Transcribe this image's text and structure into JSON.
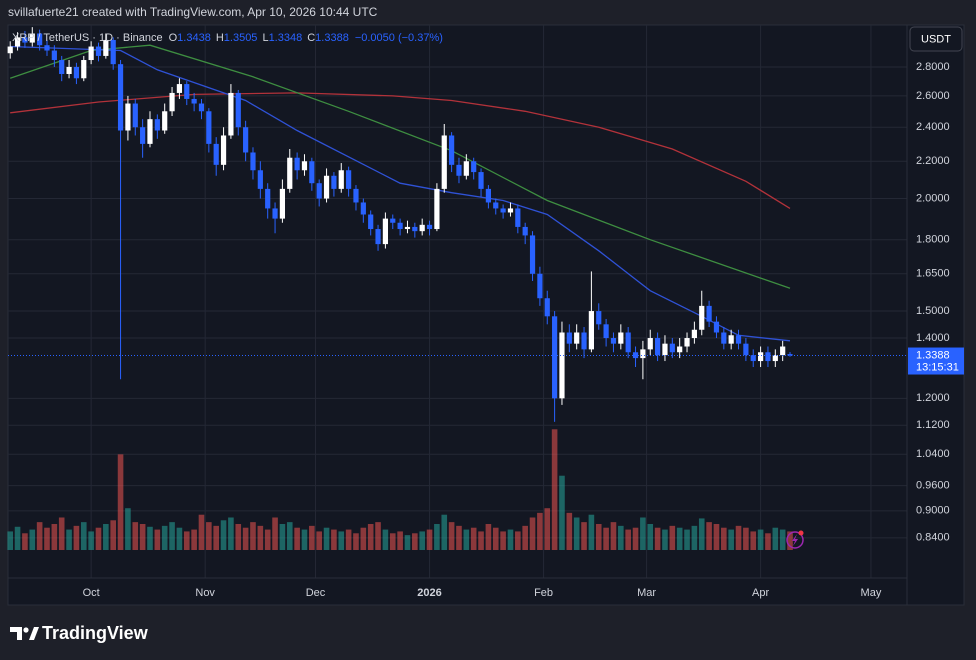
{
  "header": {
    "credit": "svillafuerte21 created with TradingView.com, Apr 10, 2026 10:44 UTC"
  },
  "chart_data": {
    "type": "candlestick",
    "legend": {
      "symbol": "XRP / TetherUS · 1D · Binance",
      "open_label": "O",
      "high_label": "H",
      "low_label": "L",
      "close_label": "C",
      "change": "−0.0050 (−0.37%)"
    },
    "currency": "USDT",
    "last_price": 1.3388,
    "countdown": "13:15:31",
    "log_scale": true,
    "grid": true,
    "up_color": "#ffffff",
    "down_color": "#2962ff",
    "volume_up_color": "rgba(38,166,154,0.55)",
    "volume_down_color": "rgba(239,83,80,0.55)",
    "ylim": [
      0.758,
      3.117
    ],
    "yticks": [
      {
        "value": 2.8,
        "label": "2.8000"
      },
      {
        "value": 2.6,
        "label": "2.6000"
      },
      {
        "value": 2.4,
        "label": "2.4000"
      },
      {
        "value": 2.2,
        "label": "2.2000"
      },
      {
        "value": 2,
        "label": "2.0000"
      },
      {
        "value": 1.8,
        "label": "1.8000"
      },
      {
        "value": 1.65,
        "label": "1.6500"
      },
      {
        "value": 1.5,
        "label": "1.5000"
      },
      {
        "value": 1.4,
        "label": "1.4000"
      },
      {
        "value": 1.2,
        "label": "1.2000"
      },
      {
        "value": 1.12,
        "label": "1.1200"
      },
      {
        "value": 1.04,
        "label": "1.0400"
      },
      {
        "value": 0.96,
        "label": "0.9600"
      },
      {
        "value": 0.9,
        "label": "0.9000"
      },
      {
        "value": 0.84,
        "label": "0.8400"
      }
    ],
    "xlim": [
      -0.3,
      121.9
    ],
    "xticks": [
      {
        "value": 11,
        "label": "Oct"
      },
      {
        "value": 26.5,
        "label": "Nov"
      },
      {
        "value": 41.5,
        "label": "Dec"
      },
      {
        "value": 57,
        "label": "2026"
      },
      {
        "value": 72.5,
        "label": "Feb"
      },
      {
        "value": 86.5,
        "label": "Mar"
      },
      {
        "value": 102,
        "label": "Apr"
      },
      {
        "value": 117,
        "label": "May"
      }
    ],
    "ohlc": [
      [
        2.9,
        2.99,
        2.86,
        2.95
      ],
      [
        2.95,
        3.06,
        2.92,
        3.02
      ],
      [
        3.02,
        3.07,
        2.94,
        2.98
      ],
      [
        2.98,
        3.1,
        2.95,
        3.05
      ],
      [
        3.05,
        3.08,
        2.92,
        2.96
      ],
      [
        2.96,
        3.0,
        2.88,
        2.92
      ],
      [
        2.92,
        2.96,
        2.8,
        2.85
      ],
      [
        2.85,
        2.88,
        2.7,
        2.75
      ],
      [
        2.75,
        2.85,
        2.72,
        2.8
      ],
      [
        2.8,
        2.83,
        2.68,
        2.72
      ],
      [
        2.72,
        2.88,
        2.7,
        2.85
      ],
      [
        2.85,
        2.99,
        2.82,
        2.95
      ],
      [
        2.95,
        2.98,
        2.84,
        2.88
      ],
      [
        2.88,
        3.05,
        2.86,
        3.0
      ],
      [
        3.0,
        3.02,
        2.78,
        2.82
      ],
      [
        2.82,
        2.85,
        1.26,
        2.38
      ],
      [
        2.38,
        2.6,
        2.32,
        2.55
      ],
      [
        2.55,
        2.58,
        2.35,
        2.4
      ],
      [
        2.4,
        2.45,
        2.22,
        2.3
      ],
      [
        2.3,
        2.5,
        2.28,
        2.45
      ],
      [
        2.45,
        2.48,
        2.33,
        2.38
      ],
      [
        2.38,
        2.55,
        2.36,
        2.5
      ],
      [
        2.5,
        2.66,
        2.47,
        2.62
      ],
      [
        2.62,
        2.72,
        2.58,
        2.68
      ],
      [
        2.68,
        2.7,
        2.54,
        2.58
      ],
      [
        2.58,
        2.62,
        2.5,
        2.55
      ],
      [
        2.55,
        2.58,
        2.45,
        2.5
      ],
      [
        2.5,
        2.52,
        2.25,
        2.3
      ],
      [
        2.3,
        2.34,
        2.12,
        2.18
      ],
      [
        2.18,
        2.4,
        2.15,
        2.35
      ],
      [
        2.35,
        2.68,
        2.33,
        2.62
      ],
      [
        2.62,
        2.64,
        2.35,
        2.4
      ],
      [
        2.4,
        2.44,
        2.2,
        2.25
      ],
      [
        2.25,
        2.28,
        2.1,
        2.15
      ],
      [
        2.15,
        2.2,
        2.0,
        2.05
      ],
      [
        2.05,
        2.08,
        1.9,
        1.95
      ],
      [
        1.95,
        1.98,
        1.83,
        1.9
      ],
      [
        1.9,
        2.1,
        1.88,
        2.05
      ],
      [
        2.05,
        2.27,
        2.03,
        2.22
      ],
      [
        2.22,
        2.25,
        2.1,
        2.15
      ],
      [
        2.15,
        2.24,
        2.12,
        2.2
      ],
      [
        2.2,
        2.22,
        2.04,
        2.08
      ],
      [
        2.08,
        2.1,
        1.96,
        2.0
      ],
      [
        2.0,
        2.16,
        1.98,
        2.12
      ],
      [
        2.12,
        2.14,
        2.01,
        2.05
      ],
      [
        2.05,
        2.19,
        2.03,
        2.15
      ],
      [
        2.15,
        2.17,
        2.01,
        2.05
      ],
      [
        2.05,
        2.07,
        1.94,
        1.98
      ],
      [
        1.98,
        2.0,
        1.88,
        1.92
      ],
      [
        1.92,
        1.94,
        1.82,
        1.85
      ],
      [
        1.85,
        1.87,
        1.75,
        1.78
      ],
      [
        1.78,
        1.93,
        1.76,
        1.9
      ],
      [
        1.9,
        1.92,
        1.85,
        1.88
      ],
      [
        1.88,
        1.9,
        1.82,
        1.85
      ],
      [
        1.85,
        1.89,
        1.83,
        1.86
      ],
      [
        1.86,
        1.88,
        1.81,
        1.84
      ],
      [
        1.84,
        1.9,
        1.82,
        1.87
      ],
      [
        1.87,
        1.89,
        1.82,
        1.85
      ],
      [
        1.85,
        2.08,
        1.84,
        2.05
      ],
      [
        2.05,
        2.42,
        2.03,
        2.35
      ],
      [
        2.35,
        2.37,
        2.14,
        2.18
      ],
      [
        2.18,
        2.22,
        2.08,
        2.12
      ],
      [
        2.12,
        2.24,
        2.1,
        2.2
      ],
      [
        2.2,
        2.22,
        2.1,
        2.14
      ],
      [
        2.14,
        2.16,
        2.01,
        2.05
      ],
      [
        2.05,
        2.07,
        1.95,
        1.98
      ],
      [
        1.98,
        2.0,
        1.92,
        1.95
      ],
      [
        1.95,
        1.97,
        1.9,
        1.93
      ],
      [
        1.93,
        1.98,
        1.91,
        1.95
      ],
      [
        1.95,
        1.97,
        1.83,
        1.86
      ],
      [
        1.86,
        1.88,
        1.78,
        1.82
      ],
      [
        1.82,
        1.84,
        1.62,
        1.65
      ],
      [
        1.65,
        1.68,
        1.52,
        1.55
      ],
      [
        1.55,
        1.58,
        1.45,
        1.48
      ],
      [
        1.48,
        1.5,
        1.13,
        1.2
      ],
      [
        1.2,
        1.46,
        1.18,
        1.42
      ],
      [
        1.42,
        1.45,
        1.35,
        1.38
      ],
      [
        1.38,
        1.45,
        1.36,
        1.42
      ],
      [
        1.42,
        1.44,
        1.33,
        1.36
      ],
      [
        1.36,
        1.66,
        1.35,
        1.5
      ],
      [
        1.5,
        1.53,
        1.43,
        1.45
      ],
      [
        1.45,
        1.47,
        1.37,
        1.4
      ],
      [
        1.4,
        1.42,
        1.35,
        1.38
      ],
      [
        1.38,
        1.45,
        1.36,
        1.42
      ],
      [
        1.42,
        1.44,
        1.33,
        1.35
      ],
      [
        1.35,
        1.37,
        1.3,
        1.33
      ],
      [
        1.33,
        1.39,
        1.26,
        1.36
      ],
      [
        1.36,
        1.43,
        1.34,
        1.4
      ],
      [
        1.4,
        1.42,
        1.32,
        1.34
      ],
      [
        1.34,
        1.41,
        1.32,
        1.38
      ],
      [
        1.38,
        1.4,
        1.33,
        1.35
      ],
      [
        1.35,
        1.4,
        1.33,
        1.37
      ],
      [
        1.37,
        1.42,
        1.35,
        1.4
      ],
      [
        1.4,
        1.46,
        1.38,
        1.43
      ],
      [
        1.43,
        1.58,
        1.41,
        1.52
      ],
      [
        1.52,
        1.54,
        1.44,
        1.46
      ],
      [
        1.46,
        1.48,
        1.4,
        1.42
      ],
      [
        1.42,
        1.44,
        1.36,
        1.38
      ],
      [
        1.38,
        1.43,
        1.36,
        1.41
      ],
      [
        1.41,
        1.43,
        1.36,
        1.38
      ],
      [
        1.38,
        1.4,
        1.32,
        1.34
      ],
      [
        1.34,
        1.36,
        1.3,
        1.32
      ],
      [
        1.32,
        1.37,
        1.3,
        1.35
      ],
      [
        1.35,
        1.37,
        1.3,
        1.32
      ],
      [
        1.32,
        1.36,
        1.3,
        1.34
      ],
      [
        1.34,
        1.39,
        1.32,
        1.37
      ],
      [
        1.3438,
        1.3505,
        1.3348,
        1.3388
      ]
    ],
    "volume_ylim": [
      0,
      140
    ],
    "volume": [
      20,
      25,
      18,
      22,
      30,
      24,
      28,
      35,
      22,
      26,
      30,
      20,
      24,
      28,
      32,
      103,
      45,
      30,
      28,
      25,
      22,
      26,
      30,
      24,
      20,
      22,
      38,
      30,
      26,
      32,
      35,
      28,
      24,
      30,
      26,
      22,
      35,
      28,
      30,
      24,
      22,
      26,
      20,
      24,
      22,
      20,
      22,
      18,
      24,
      28,
      30,
      22,
      18,
      20,
      16,
      18,
      20,
      22,
      28,
      38,
      30,
      26,
      22,
      24,
      20,
      28,
      24,
      20,
      22,
      20,
      26,
      35,
      40,
      45,
      130,
      80,
      40,
      35,
      30,
      38,
      28,
      24,
      30,
      26,
      22,
      24,
      35,
      28,
      24,
      22,
      26,
      24,
      22,
      26,
      34,
      30,
      28,
      24,
      22,
      26,
      24,
      20,
      22,
      18,
      24,
      22,
      20
    ],
    "moving_averages": [
      {
        "color": "#b2323a",
        "x": [
          0,
          12,
          25,
          39,
          52,
          60,
          70,
          80,
          90,
          100,
          106
        ],
        "values": [
          2.49,
          2.56,
          2.61,
          2.62,
          2.6,
          2.57,
          2.5,
          2.4,
          2.27,
          2.09,
          1.95
        ]
      },
      {
        "color": "#3e8e41",
        "x": [
          0,
          11,
          19,
          33,
          46,
          60,
          73,
          87,
          106
        ],
        "values": [
          2.72,
          2.92,
          2.96,
          2.73,
          2.5,
          2.26,
          1.99,
          1.8,
          1.59
        ]
      },
      {
        "color": "#2f52d6",
        "x": [
          0,
          15,
          20,
          32,
          39,
          53,
          60,
          67,
          73,
          80,
          87,
          94,
          99,
          106
        ],
        "values": [
          2.95,
          2.92,
          2.78,
          2.57,
          2.38,
          2.08,
          2.03,
          1.99,
          1.92,
          1.75,
          1.58,
          1.48,
          1.41,
          1.39
        ]
      }
    ]
  },
  "footer": {
    "brand": "TradingView"
  }
}
